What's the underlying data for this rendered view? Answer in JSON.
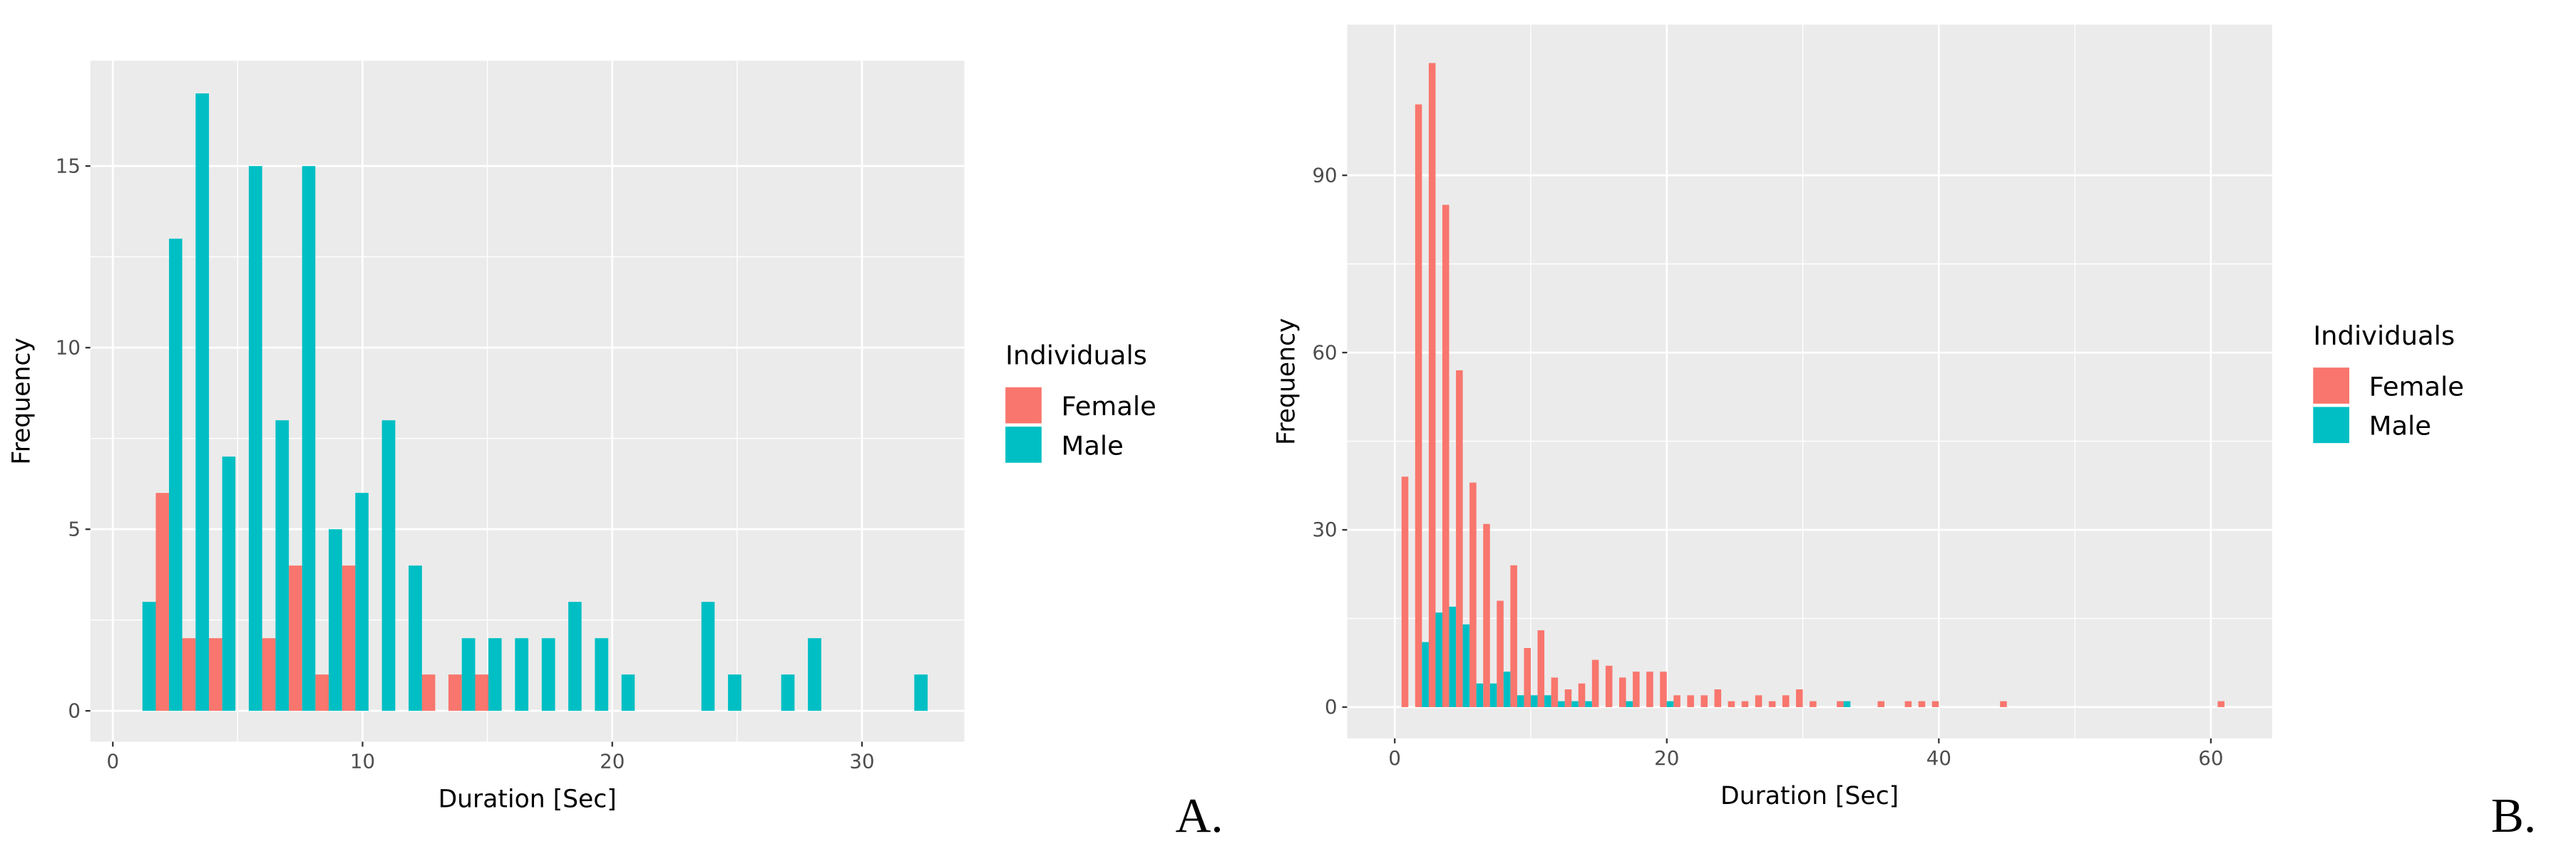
{
  "chart_data": [
    {
      "type": "histogram",
      "panel_label": "A.",
      "x_label": "Duration [Sec]",
      "y_label": "Frequency",
      "legend_title": "Individuals",
      "bins": [
        0.65,
        1.72,
        2.78,
        3.85,
        4.91,
        5.98,
        7.05,
        8.11,
        9.18,
        10.24,
        11.31,
        12.38,
        13.44,
        14.51,
        15.57,
        16.64,
        17.71,
        18.77,
        19.84,
        20.9,
        21.97,
        23.04,
        24.1,
        25.17,
        26.23,
        27.3,
        28.37,
        29.43,
        30.5,
        31.56,
        32.63
      ],
      "series": [
        {
          "name": "Female",
          "color": "#F8766D",
          "values": [
            0,
            6,
            2,
            2,
            0,
            2,
            4,
            1,
            4,
            0,
            0,
            1,
            1,
            1,
            0,
            0,
            0,
            0,
            0,
            0,
            0,
            0,
            0,
            0,
            0,
            0,
            0,
            0,
            0,
            0
          ]
        },
        {
          "name": "Male",
          "color": "#00BFC4",
          "values": [
            3,
            13,
            17,
            7,
            15,
            8,
            15,
            5,
            6,
            8,
            4,
            0,
            2,
            2,
            2,
            2,
            3,
            2,
            1,
            0,
            0,
            3,
            1,
            0,
            1,
            2,
            0,
            0,
            0,
            1
          ]
        }
      ],
      "xlim": [
        -0.9,
        34.1
      ],
      "ylim": [
        -0.85,
        17.9
      ],
      "xticks": [
        0,
        10,
        20,
        30
      ],
      "yticks": [
        0,
        5,
        10,
        15
      ],
      "grid": true
    },
    {
      "type": "histogram",
      "panel_label": "B.",
      "x_label": "Duration [Sec]",
      "y_label": "Frequency",
      "legend_title": "Individuals",
      "bins": [
        0.5,
        1.5,
        2.5,
        3.5,
        4.5,
        5.5,
        6.5,
        7.5,
        8.5,
        9.5,
        10.5,
        11.5,
        12.5,
        13.5,
        14.5,
        15.5,
        16.5,
        17.5,
        18.5,
        19.5,
        20.5,
        21.5,
        22.5,
        23.5,
        24.5,
        25.5,
        26.5,
        27.5,
        28.5,
        29.5,
        30.5,
        31.5,
        32.5,
        33.5,
        34.5,
        35.5,
        36.5,
        37.5,
        38.5,
        39.5,
        40.5,
        41.5,
        42.5,
        43.5,
        44.5,
        45.5,
        46.5,
        47.5,
        48.5,
        49.5,
        50.5,
        51.5,
        52.5,
        53.5,
        54.5,
        55.5,
        56.5,
        57.5,
        58.5,
        59.5,
        60.5,
        61.5
      ],
      "series": [
        {
          "name": "Female",
          "color": "#F8766D",
          "values": [
            39,
            102,
            109,
            85,
            57,
            38,
            31,
            18,
            24,
            10,
            13,
            5,
            3,
            4,
            8,
            7,
            5,
            6,
            6,
            6,
            2,
            2,
            2,
            3,
            1,
            1,
            2,
            1,
            2,
            3,
            1,
            0,
            1,
            0,
            0,
            1,
            0,
            1,
            1,
            1,
            0,
            0,
            0,
            0,
            1,
            0,
            0,
            0,
            0,
            0,
            0,
            0,
            0,
            0,
            0,
            0,
            0,
            0,
            0,
            0,
            1
          ]
        },
        {
          "name": "Male",
          "color": "#00BFC4",
          "values": [
            0,
            11,
            16,
            17,
            14,
            4,
            4,
            6,
            2,
            2,
            2,
            1,
            1,
            1,
            0,
            0,
            1,
            0,
            0,
            1,
            0,
            0,
            0,
            0,
            0,
            0,
            0,
            0,
            0,
            0,
            0,
            0,
            1,
            0,
            0,
            0,
            0,
            0,
            0,
            0,
            0,
            0,
            0,
            0,
            0,
            0,
            0,
            0,
            0,
            0,
            0,
            0,
            0,
            0,
            0,
            0,
            0,
            0,
            0,
            0,
            0
          ]
        }
      ],
      "xlim": [
        -3.5,
        64.5
      ],
      "ylim": [
        -5.3,
        115.5
      ],
      "xticks": [
        0,
        20,
        40,
        60
      ],
      "yticks": [
        0,
        30,
        60,
        90
      ],
      "grid": true
    }
  ]
}
